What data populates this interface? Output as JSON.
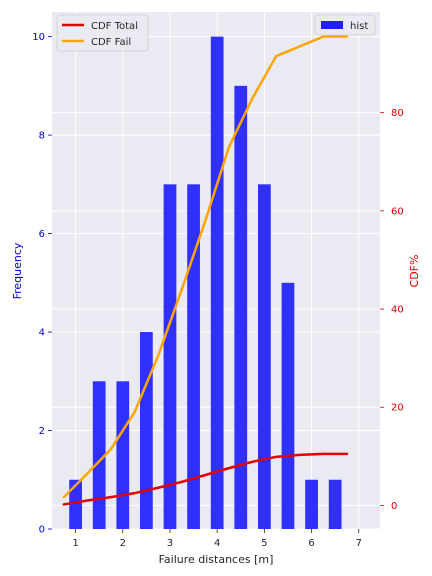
{
  "chart_data": {
    "type": "bar",
    "xlabel": "Failure distances [m]",
    "ylabel": "Frequency",
    "y2label": "CDF%",
    "xlim": [
      0.5,
      7.45
    ],
    "ylim": [
      0,
      10.5
    ],
    "y2lim": [
      -4.8,
      100.5
    ],
    "xticks": [
      1,
      2,
      3,
      4,
      5,
      6,
      7
    ],
    "yticks": [
      0,
      2,
      4,
      6,
      8,
      10
    ],
    "y2ticks": [
      0,
      20,
      40,
      60,
      80
    ],
    "grid": true,
    "colors": {
      "hist": "#1f1fff",
      "cdf_total": "#e00000",
      "cdf_fail": "#ffa500",
      "left_axis": "#0000cc",
      "right_axis": "#dd0000",
      "background": "#eaeaf2"
    },
    "hist": {
      "name": "hist",
      "bar_width": 0.27,
      "x": [
        1.0,
        1.5,
        2.0,
        2.5,
        3.0,
        3.5,
        4.0,
        4.5,
        5.0,
        5.5,
        6.0,
        6.5
      ],
      "values": [
        1,
        3,
        3,
        4,
        7,
        7,
        10,
        9,
        7,
        5,
        1,
        1
      ]
    },
    "series": [
      {
        "name": "CDF Total",
        "x": [
          0.75,
          1.25,
          1.75,
          2.25,
          2.75,
          3.25,
          3.75,
          4.25,
          4.75,
          5.25,
          5.75,
          6.25,
          6.75
        ],
        "values": [
          0.2,
          1.0,
          1.7,
          2.5,
          3.6,
          4.8,
          6.2,
          7.6,
          8.9,
          9.9,
          10.3,
          10.5,
          10.5
        ]
      },
      {
        "name": "CDF Fail",
        "x": [
          0.75,
          1.25,
          1.75,
          2.25,
          2.75,
          3.25,
          3.75,
          4.25,
          4.75,
          5.25,
          5.75,
          6.25,
          6.75
        ],
        "values": [
          1.7,
          6.5,
          11.5,
          19.0,
          30.5,
          44.0,
          58.0,
          73.0,
          83.0,
          91.5,
          93.5,
          95.5,
          95.5
        ]
      }
    ],
    "legends": [
      {
        "placement": "upper-left",
        "entries": [
          "CDF Total",
          "CDF Fail"
        ]
      },
      {
        "placement": "upper-right",
        "entries": [
          "hist"
        ]
      }
    ]
  }
}
